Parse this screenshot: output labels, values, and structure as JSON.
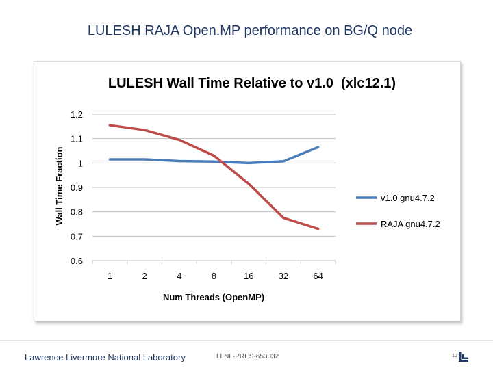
{
  "slide": {
    "title": "LULESH RAJA Open.MP performance on BG/Q node",
    "footer_lab": "Lawrence Livermore National Laboratory",
    "footer_code": "LLNL-PRES-653032",
    "page_number": "10"
  },
  "colors": {
    "title": "#1f3864",
    "grid": "#bfbfbf",
    "series_v1": "#4a7ebb",
    "series_raja": "#be4b48"
  },
  "chart_data": {
    "type": "line",
    "title": "LULESH Wall Time Relative to v1.0  (xlc12.1)",
    "xlabel": "Num Threads (OpenMP)",
    "ylabel": "Wall Time Fraction",
    "categories": [
      "1",
      "2",
      "4",
      "8",
      "16",
      "32",
      "64"
    ],
    "ylim": [
      0.6,
      1.2
    ],
    "yticks": [
      "0.6",
      "0.7",
      "0.8",
      "0.9",
      "1",
      "1.1",
      "1.2"
    ],
    "grid": true,
    "legend_position": "right",
    "series": [
      {
        "name": "v1.0 gnu4.7.2",
        "values": [
          1.015,
          1.015,
          1.008,
          1.006,
          1.0,
          1.007,
          1.065
        ],
        "color": "#4a7ebb"
      },
      {
        "name": "RAJA gnu4.7.2",
        "values": [
          1.155,
          1.135,
          1.095,
          1.03,
          0.915,
          0.775,
          0.73
        ],
        "color": "#be4b48"
      }
    ]
  }
}
